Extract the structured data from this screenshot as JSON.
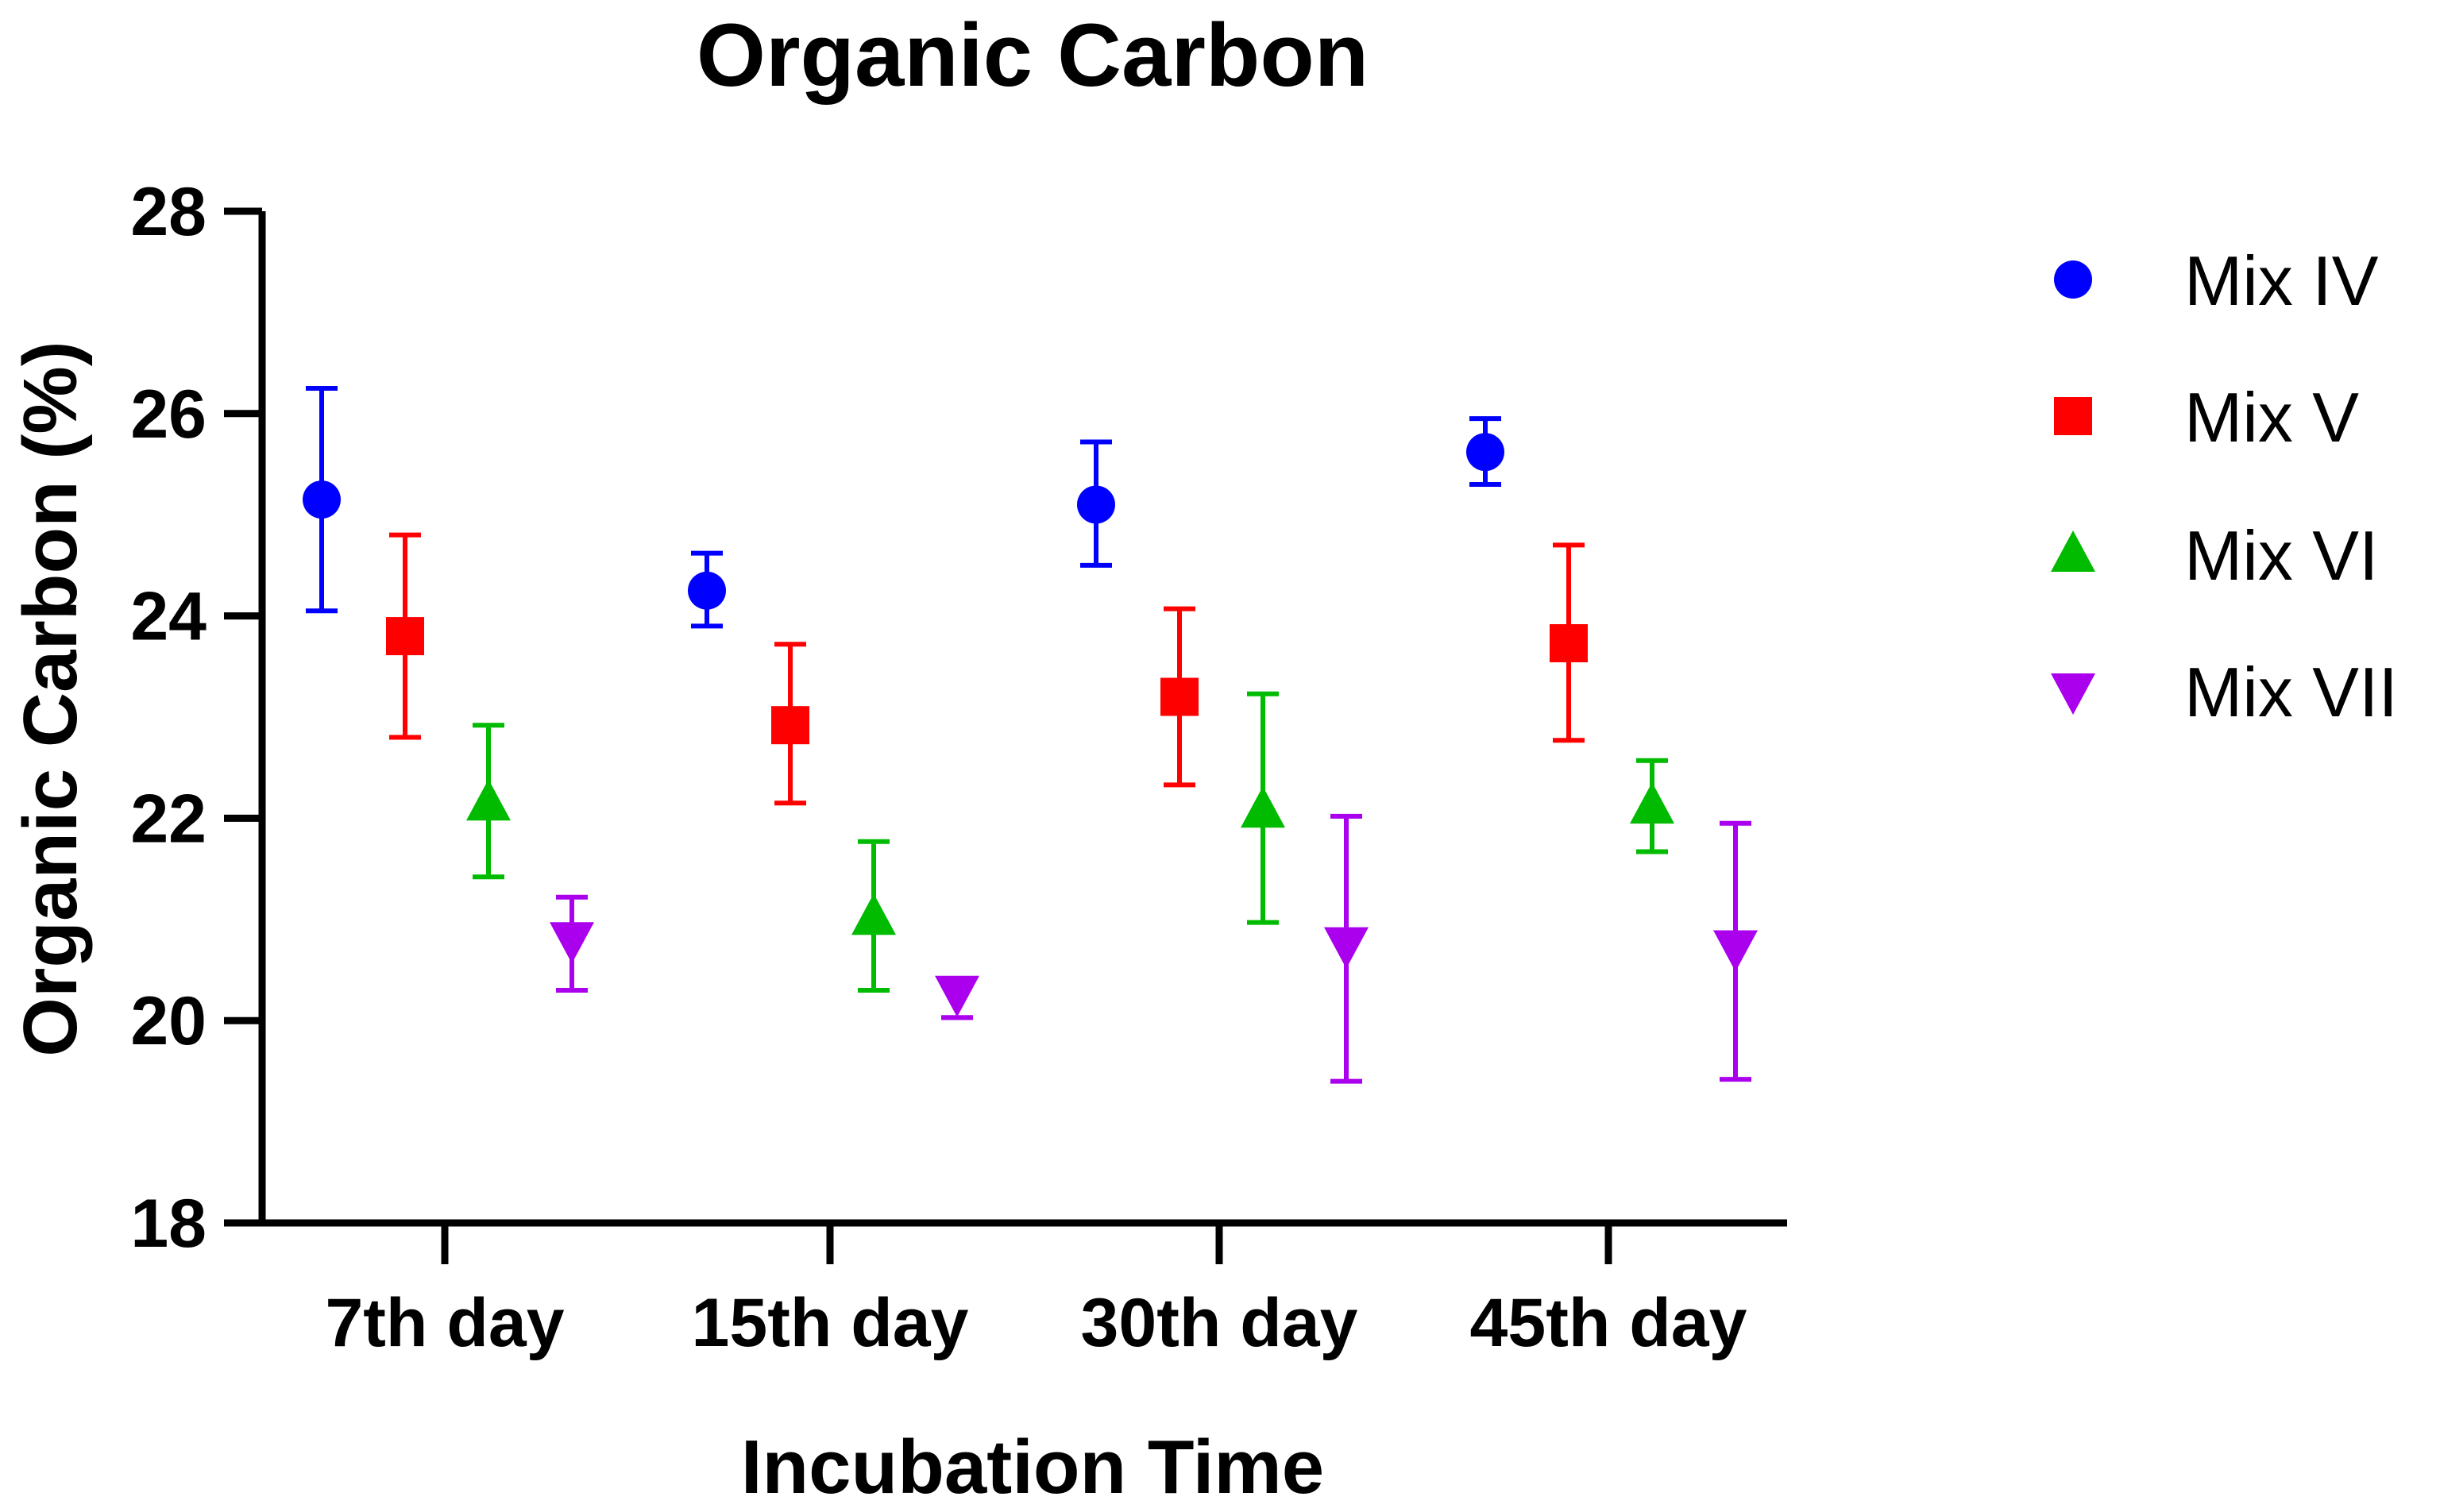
{
  "chart_data": {
    "type": "scatter",
    "title": "Organic Carbon",
    "xlabel": "Incubation Time",
    "ylabel": "Organic Carbon (%)",
    "categories": [
      "7th day",
      "15th day",
      "30th day",
      "45th day"
    ],
    "ylim": [
      18,
      28
    ],
    "yticks": [
      "18",
      "20",
      "22",
      "24",
      "26",
      "28"
    ],
    "legend_position": "right",
    "series": [
      {
        "name": "Mix IV",
        "color": "#0000ff",
        "marker": "circle",
        "values": [
          25.15,
          24.25,
          25.1,
          25.62
        ],
        "err_low": [
          24.05,
          23.9,
          24.5,
          25.3
        ],
        "err_high": [
          26.25,
          24.62,
          25.72,
          25.95
        ]
      },
      {
        "name": "Mix V",
        "color": "#ff0000",
        "marker": "square",
        "values": [
          23.8,
          22.92,
          23.2,
          23.73
        ],
        "err_low": [
          22.8,
          22.15,
          22.33,
          22.77
        ],
        "err_high": [
          24.8,
          23.72,
          24.07,
          24.7
        ]
      },
      {
        "name": "Mix VI",
        "color": "#00bb00",
        "marker": "triangle-up",
        "values": [
          22.15,
          21.02,
          22.08,
          22.12
        ],
        "err_low": [
          21.42,
          20.3,
          20.97,
          21.67
        ],
        "err_high": [
          22.92,
          21.77,
          23.23,
          22.57
        ]
      },
      {
        "name": "Mix VII",
        "color": "#aa00ee",
        "marker": "triangle-down",
        "values": [
          20.8,
          20.27,
          20.75,
          20.72
        ],
        "err_low": [
          20.3,
          20.03,
          19.4,
          19.42
        ],
        "err_high": [
          21.22,
          20.03,
          22.02,
          21.95
        ]
      }
    ]
  }
}
